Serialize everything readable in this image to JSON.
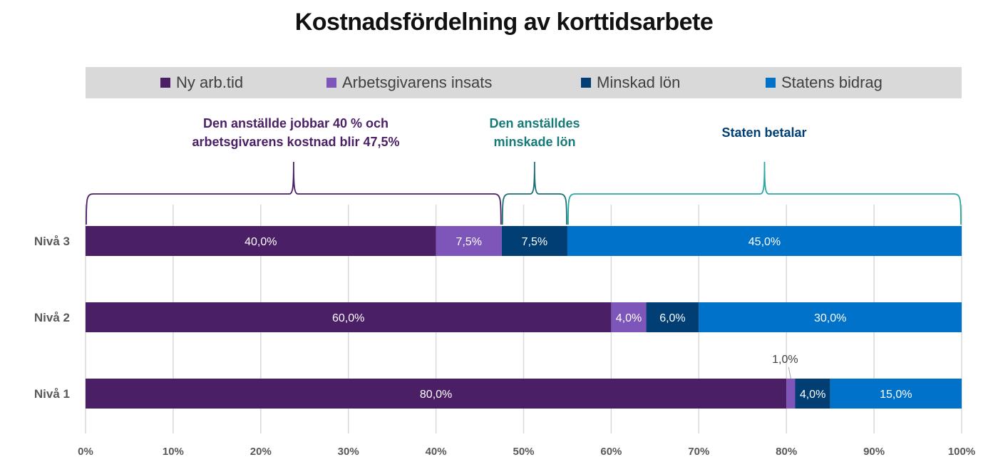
{
  "chart_data": {
    "type": "bar",
    "orientation": "horizontal",
    "stacked": true,
    "title": "Kostnadsfördelning av korttidsarbete",
    "xlabel": "",
    "ylabel": "",
    "xlim": [
      0,
      100
    ],
    "x_ticks": [
      "0%",
      "10%",
      "20%",
      "30%",
      "40%",
      "50%",
      "60%",
      "70%",
      "80%",
      "90%",
      "100%"
    ],
    "grid": true,
    "legend_position": "top",
    "categories": [
      "Nivå 3",
      "Nivå 2",
      "Nivå 1"
    ],
    "series": [
      {
        "name": "Ny arb.tid",
        "color": "#4b1f66",
        "values": [
          40.0,
          60.0,
          80.0
        ],
        "labels": [
          "40,0%",
          "60,0%",
          "80,0%"
        ]
      },
      {
        "name": "Arbetsgivarens insats",
        "color": "#7e55b8",
        "values": [
          7.5,
          4.0,
          1.0
        ],
        "labels": [
          "7,5%",
          "4,0%",
          "1,0%"
        ]
      },
      {
        "name": "Minskad lön",
        "color": "#003e74",
        "values": [
          7.5,
          6.0,
          4.0
        ],
        "labels": [
          "7,5%",
          "6,0%",
          "4,0%"
        ]
      },
      {
        "name": "Statens bidrag",
        "color": "#0072c9",
        "values": [
          45.0,
          30.0,
          15.0
        ],
        "labels": [
          "45,0%",
          "30,0%",
          "15,0%"
        ]
      }
    ],
    "annotations": [
      {
        "text_lines": [
          "Den anställde jobbar 40 % och",
          "arbetsgivarens kostnad blir 47,5%"
        ],
        "color": "#4b1f66",
        "range": [
          0,
          47.5
        ]
      },
      {
        "text_lines": [
          "Den anställdes",
          "minskade lön"
        ],
        "color": "#157a78",
        "range": [
          47.5,
          55
        ]
      },
      {
        "text_lines": [
          "Staten betalar"
        ],
        "color": "#003e74",
        "range": [
          55,
          100
        ]
      }
    ]
  },
  "colors": {
    "bracket_purple": "#4b1f66",
    "bracket_teal_dark": "#1c6f73",
    "bracket_teal": "#2aa7a2",
    "gridline": "#d9d9d9",
    "legend_bg": "#d9d9d9"
  }
}
